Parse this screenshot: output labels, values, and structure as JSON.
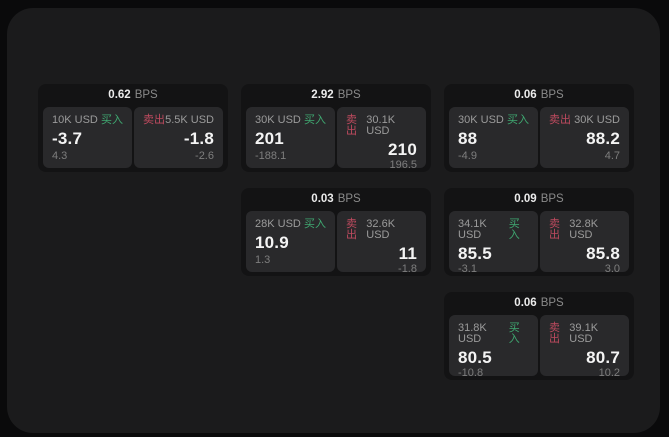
{
  "colors": {
    "outer_bg": "#0a0a0b",
    "panel_bg": "#1b1b1c",
    "card_bg": "#131314",
    "tile_bg": "#29292b",
    "buy_accent": "#3fa871",
    "sell_accent": "#bf4a5f"
  },
  "labels": {
    "buy": "买入",
    "sell": "卖出",
    "bps_unit": "BPS"
  },
  "cards": [
    {
      "row": 1,
      "col": 1,
      "bps": "0.62",
      "buy": {
        "amount": "10K USD",
        "value": "-3.7",
        "sub": "4.3"
      },
      "sell": {
        "amount": "5.5K USD",
        "value": "-1.8",
        "sub": "-2.6"
      }
    },
    {
      "row": 1,
      "col": 2,
      "bps": "2.92",
      "buy": {
        "amount": "30K USD",
        "value": "201",
        "sub": "-188.1"
      },
      "sell": {
        "amount": "30.1K USD",
        "value": "210",
        "sub": "196.5"
      }
    },
    {
      "row": 1,
      "col": 3,
      "bps": "0.06",
      "buy": {
        "amount": "30K USD",
        "value": "88",
        "sub": "-4.9"
      },
      "sell": {
        "amount": "30K USD",
        "value": "88.2",
        "sub": "4.7"
      }
    },
    {
      "row": 2,
      "col": 2,
      "bps": "0.03",
      "buy": {
        "amount": "28K USD",
        "value": "10.9",
        "sub": "1.3"
      },
      "sell": {
        "amount": "32.6K USD",
        "value": "11",
        "sub": "-1.8"
      }
    },
    {
      "row": 2,
      "col": 3,
      "bps": "0.09",
      "buy": {
        "amount": "34.1K USD",
        "value": "85.5",
        "sub": "-3.1"
      },
      "sell": {
        "amount": "32.8K USD",
        "value": "85.8",
        "sub": "3.0"
      }
    },
    {
      "row": 3,
      "col": 3,
      "bps": "0.06",
      "buy": {
        "amount": "31.8K USD",
        "value": "80.5",
        "sub": "-10.8"
      },
      "sell": {
        "amount": "39.1K USD",
        "value": "80.7",
        "sub": "10.2"
      }
    }
  ]
}
